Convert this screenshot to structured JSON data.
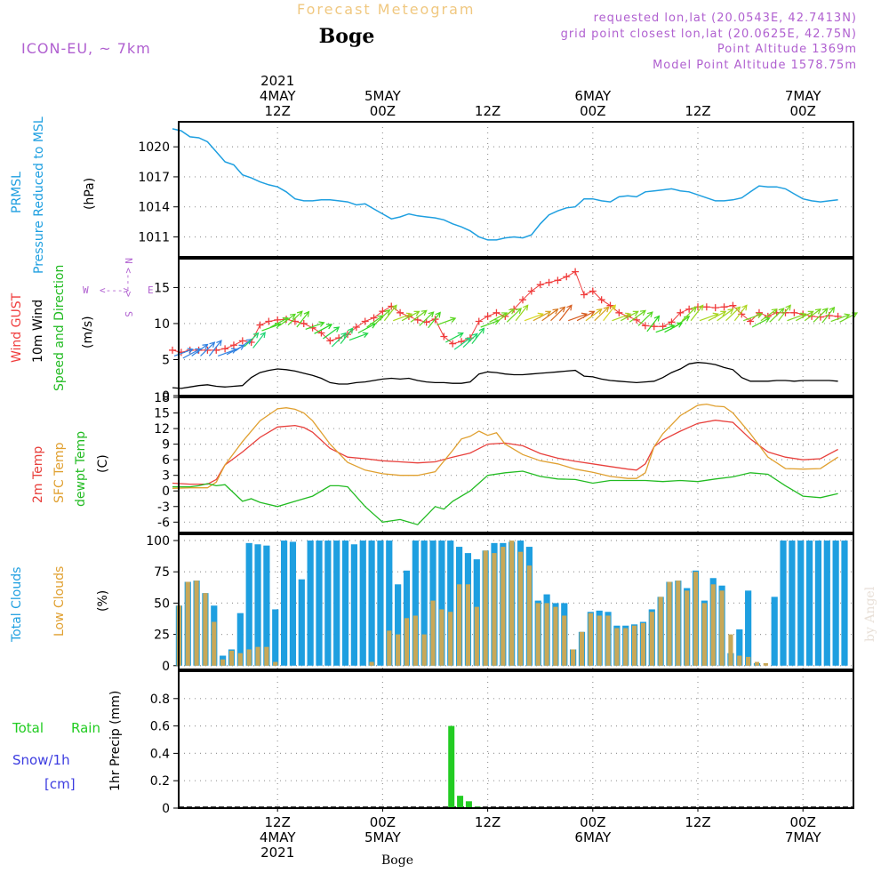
{
  "header": {
    "app_title": "Forecast Meteogram",
    "location": "Boge",
    "model": "ICON-EU, ~ 7km",
    "requested": "requested lon,lat (20.0543E, 42.7413N)",
    "grid_point": "grid point closest lon,lat (20.0625E, 42.75N)",
    "point_altitude": "Point Altitude 1369m",
    "model_altitude": "Model Point Altitude 1578.75m"
  },
  "footer": {
    "location": "Boge",
    "credit": "by Angel"
  },
  "colors": {
    "pressure": "#1e9fe0",
    "gust": "#f03c3c",
    "wind": "#000000",
    "direction": "#22bb22",
    "temp2m": "#e8403c",
    "sfc": "#e0a030",
    "dewpt": "#22bb22",
    "total_clouds": "#1e9fe0",
    "low_clouds": "#c8a858",
    "rain": "#22cc22",
    "snow": "#3c3ce0",
    "compass": "#b060d0",
    "header_info": "#b060d0",
    "title_orange": "#f0c880"
  },
  "time_axis": {
    "top_labels": [
      {
        "hours": 12,
        "lines": [
          "2021",
          "4MAY",
          "12Z"
        ]
      },
      {
        "hours": 24,
        "lines": [
          "5MAY",
          "00Z"
        ]
      },
      {
        "hours": 36,
        "lines": [
          "12Z"
        ]
      },
      {
        "hours": 48,
        "lines": [
          "6MAY",
          "00Z"
        ]
      },
      {
        "hours": 60,
        "lines": [
          "12Z"
        ]
      },
      {
        "hours": 72,
        "lines": [
          "7MAY",
          "00Z"
        ]
      }
    ],
    "bottom_labels": [
      {
        "hours": 12,
        "lines": [
          "12Z",
          "4MAY",
          "2021"
        ]
      },
      {
        "hours": 24,
        "lines": [
          "00Z",
          "5MAY"
        ]
      },
      {
        "hours": 36,
        "lines": [
          "12Z"
        ]
      },
      {
        "hours": 48,
        "lines": [
          "00Z",
          "6MAY"
        ]
      },
      {
        "hours": 60,
        "lines": [
          "12Z"
        ]
      },
      {
        "hours": 72,
        "lines": [
          "00Z",
          "7MAY"
        ]
      }
    ]
  },
  "compass": {
    "north": "N",
    "south": "S",
    "west": "W",
    "east": "E",
    "arrow": "<--->"
  },
  "chart_data": [
    {
      "id": "pressure",
      "type": "line",
      "title": "PRMSL Pressure Reduced to MSL",
      "ylabel_lines": [
        "PRMSL",
        "Pressure Reduced to MSL"
      ],
      "unit": "(hPa)",
      "ylim": [
        1009,
        1022.5
      ],
      "yticks": [
        1011,
        1014,
        1017,
        1020
      ],
      "x_range_hours": [
        0,
        77
      ],
      "x_hours": [
        0,
        1,
        2,
        3,
        4,
        5,
        6,
        7,
        8,
        9,
        10,
        11,
        12,
        13,
        14,
        15,
        16,
        17,
        18,
        19,
        20,
        21,
        22,
        23,
        24,
        25,
        26,
        27,
        28,
        29,
        30,
        31,
        32,
        33,
        34,
        35,
        36,
        37,
        38,
        39,
        40,
        41,
        42,
        43,
        44,
        45,
        46,
        47,
        48,
        49,
        50,
        51,
        52,
        53,
        54,
        55,
        56,
        57,
        58,
        59,
        60,
        61,
        62,
        63,
        64,
        65,
        66,
        67,
        68,
        69,
        70,
        71,
        72,
        73,
        74,
        75,
        76
      ],
      "values": [
        1021.8,
        1021.6,
        1021.0,
        1020.9,
        1020.5,
        1019.5,
        1018.5,
        1018.2,
        1017.2,
        1016.9,
        1016.5,
        1016.2,
        1016.0,
        1015.5,
        1014.8,
        1014.6,
        1014.6,
        1014.7,
        1014.7,
        1014.6,
        1014.5,
        1014.2,
        1014.3,
        1013.8,
        1013.3,
        1012.8,
        1013.0,
        1013.3,
        1013.1,
        1013.0,
        1012.9,
        1012.7,
        1012.3,
        1012.0,
        1011.6,
        1011.0,
        1010.7,
        1010.7,
        1010.9,
        1011.0,
        1010.9,
        1011.2,
        1012.3,
        1013.2,
        1013.6,
        1013.9,
        1014.0,
        1014.8,
        1014.8,
        1014.6,
        1014.5,
        1015.0,
        1015.1,
        1015.0,
        1015.5,
        1015.6,
        1015.7,
        1015.8,
        1015.6,
        1015.5,
        1015.2,
        1014.9,
        1014.6,
        1014.6,
        1014.7,
        1014.9,
        1015.5,
        1016.1,
        1016.0,
        1016.0,
        1015.8,
        1015.3,
        1014.8,
        1014.6,
        1014.5,
        1014.6,
        1014.7
      ]
    },
    {
      "id": "wind",
      "type": "line",
      "title": "Wind GUST / 10m Wind Speed and Direction",
      "ylabel_gust": "Wind GUST",
      "ylabel_wind": "10m Wind",
      "ylabel_dir": "Speed and Direction",
      "unit": "(m/s)",
      "ylim": [
        0,
        19
      ],
      "yticks": [
        0,
        5,
        10,
        15
      ],
      "x_range_hours": [
        0,
        77
      ],
      "series": [
        {
          "name": "Wind GUST",
          "marker": "+",
          "x_hours": [
            0,
            1,
            2,
            3,
            4,
            5,
            6,
            7,
            8,
            9,
            10,
            11,
            12,
            13,
            14,
            15,
            16,
            17,
            18,
            19,
            20,
            21,
            22,
            23,
            24,
            25,
            26,
            27,
            28,
            29,
            30,
            31,
            32,
            33,
            34,
            35,
            36,
            37,
            38,
            39,
            40,
            41,
            42,
            43,
            44,
            45,
            46,
            47,
            48,
            49,
            50,
            51,
            52,
            53,
            54,
            55,
            56,
            57,
            58,
            59,
            60,
            61,
            62,
            63,
            64,
            65,
            66,
            67,
            68,
            69,
            70,
            71,
            72,
            73,
            74,
            75,
            76
          ],
          "values": [
            6.3,
            6.0,
            6.3,
            6.3,
            6.3,
            6.3,
            6.5,
            7.0,
            7.6,
            7.4,
            9.8,
            10.3,
            10.5,
            10.6,
            10.3,
            10.0,
            9.4,
            8.7,
            7.6,
            8.0,
            8.5,
            9.5,
            10.3,
            10.8,
            11.7,
            12.4,
            11.5,
            11.0,
            10.5,
            10.2,
            10.6,
            8.2,
            7.2,
            7.5,
            8.0,
            10.3,
            11.0,
            11.5,
            11.0,
            12.0,
            13.3,
            14.5,
            15.4,
            15.7,
            16.0,
            16.5,
            17.2,
            14.0,
            14.5,
            13.3,
            12.5,
            11.5,
            11.0,
            10.5,
            9.7,
            9.6,
            9.6,
            10.2,
            11.5,
            12.0,
            12.3,
            12.3,
            12.2,
            12.3,
            12.5,
            11.3,
            10.3,
            11.5,
            11.0,
            11.5,
            11.5,
            11.5,
            11.3,
            11.0,
            10.9,
            11.1,
            11.0
          ]
        },
        {
          "name": "10m Wind",
          "x_hours": [
            0,
            1,
            2,
            3,
            4,
            5,
            6,
            7,
            8,
            9,
            10,
            11,
            12,
            13,
            14,
            15,
            16,
            17,
            18,
            19,
            20,
            21,
            22,
            23,
            24,
            25,
            26,
            27,
            28,
            29,
            30,
            31,
            32,
            33,
            34,
            35,
            36,
            37,
            38,
            39,
            40,
            41,
            42,
            43,
            44,
            45,
            46,
            47,
            48,
            49,
            50,
            51,
            52,
            53,
            54,
            55,
            56,
            57,
            58,
            59,
            60,
            61,
            62,
            63,
            64,
            65,
            66,
            67,
            68,
            69,
            70,
            71,
            72,
            73,
            74,
            75,
            76
          ],
          "values": [
            1.1,
            1.0,
            1.2,
            1.4,
            1.5,
            1.3,
            1.2,
            1.3,
            1.4,
            2.5,
            3.2,
            3.5,
            3.7,
            3.6,
            3.4,
            3.1,
            2.8,
            2.4,
            1.8,
            1.6,
            1.6,
            1.8,
            1.9,
            2.1,
            2.3,
            2.4,
            2.3,
            2.4,
            2.1,
            1.9,
            1.8,
            1.8,
            1.7,
            1.7,
            1.9,
            3.0,
            3.3,
            3.2,
            3.0,
            2.9,
            2.9,
            3.0,
            3.1,
            3.2,
            3.3,
            3.4,
            3.5,
            2.7,
            2.6,
            2.3,
            2.1,
            2.0,
            1.9,
            1.8,
            1.9,
            2.0,
            2.5,
            3.2,
            3.7,
            4.4,
            4.6,
            4.5,
            4.3,
            3.9,
            3.6,
            2.5,
            2.0,
            2.0,
            2.0,
            2.1,
            2.1,
            2.0,
            2.1,
            2.1,
            2.1,
            2.1,
            2.0
          ]
        }
      ],
      "direction_arrows_count": 77
    },
    {
      "id": "temperature",
      "type": "line",
      "ylabel_2m": "2m Temp",
      "ylabel_sfc": "SFC Temp",
      "ylabel_dew": "dewpt Temp",
      "unit": "(C)",
      "ylim": [
        -8,
        18
      ],
      "yticks": [
        -6,
        -3,
        0,
        3,
        6,
        9,
        12,
        15,
        18
      ],
      "x_range_hours": [
        0,
        77
      ],
      "series": [
        {
          "name": "2m Temp",
          "x_hours": [
            0,
            2,
            4,
            5,
            6,
            8,
            10,
            12,
            14,
            15,
            16,
            18,
            20,
            22,
            24,
            26,
            28,
            30,
            32,
            34,
            36,
            38,
            40,
            42,
            44,
            46,
            48,
            50,
            52,
            53,
            54,
            55,
            56,
            58,
            60,
            62,
            64,
            66,
            68,
            70,
            72,
            74,
            76
          ],
          "values": [
            1.5,
            1.3,
            1.3,
            2.2,
            5.0,
            7.5,
            10.3,
            12.3,
            12.6,
            12.2,
            11.3,
            8.2,
            6.5,
            6.2,
            5.8,
            5.6,
            5.4,
            5.6,
            6.5,
            7.3,
            9.0,
            9.2,
            8.7,
            7.2,
            6.3,
            5.7,
            5.2,
            4.7,
            4.2,
            4.0,
            5.2,
            8.5,
            9.8,
            11.5,
            13.0,
            13.6,
            13.2,
            10.0,
            7.5,
            6.5,
            6.0,
            6.2,
            8.0
          ]
        },
        {
          "name": "SFC Temp",
          "x_hours": [
            0,
            2,
            4,
            5,
            6,
            8,
            10,
            12,
            13,
            14,
            15,
            16,
            18,
            20,
            22,
            24,
            26,
            28,
            30,
            32,
            33,
            34,
            35,
            36,
            37,
            38,
            40,
            42,
            44,
            46,
            48,
            50,
            52,
            53,
            54,
            55,
            56,
            58,
            60,
            61,
            62,
            63,
            64,
            66,
            68,
            70,
            72,
            74,
            76
          ],
          "values": [
            0.5,
            0.6,
            0.6,
            1.7,
            5.0,
            9.5,
            13.5,
            15.8,
            16.0,
            15.7,
            15.0,
            13.5,
            9.0,
            5.5,
            4.0,
            3.3,
            3.0,
            3.0,
            3.7,
            7.8,
            10.0,
            10.5,
            11.5,
            10.7,
            11.2,
            9.0,
            7.0,
            5.8,
            5.2,
            4.2,
            3.6,
            2.8,
            2.4,
            2.4,
            3.5,
            8.5,
            11.0,
            14.5,
            16.5,
            16.7,
            16.3,
            16.2,
            15.0,
            11.0,
            6.5,
            4.3,
            4.2,
            4.3,
            6.5
          ]
        },
        {
          "name": "dewpt Temp",
          "x_hours": [
            0,
            2,
            3,
            4,
            5,
            6,
            8,
            9,
            10,
            12,
            14,
            16,
            18,
            19,
            20,
            22,
            24,
            26,
            27,
            28,
            30,
            31,
            32,
            34,
            35,
            36,
            38,
            40,
            42,
            44,
            46,
            48,
            50,
            52,
            54,
            56,
            58,
            60,
            62,
            64,
            66,
            68,
            70,
            72,
            74,
            76
          ],
          "values": [
            0.8,
            0.8,
            1.0,
            1.4,
            1.0,
            1.2,
            -2.0,
            -1.5,
            -2.2,
            -3.0,
            -2.0,
            -1.0,
            1.0,
            1.0,
            0.8,
            -3.0,
            -6.0,
            -5.5,
            -6.0,
            -6.5,
            -3.0,
            -3.5,
            -2.0,
            0.0,
            1.5,
            3.0,
            3.5,
            3.8,
            2.8,
            2.3,
            2.2,
            1.5,
            2.0,
            2.0,
            2.0,
            1.8,
            2.0,
            1.8,
            2.3,
            2.7,
            3.5,
            3.2,
            1.0,
            -1.0,
            -1.3,
            -0.5
          ]
        }
      ]
    },
    {
      "id": "clouds",
      "type": "bar",
      "ylabel_total": "Total Clouds",
      "ylabel_low": "Low Clouds",
      "unit": "(%)",
      "ylim": [
        -3,
        105
      ],
      "yticks": [
        0,
        25,
        50,
        75,
        100
      ],
      "x_range_hours": [
        0,
        77
      ],
      "series": [
        {
          "name": "Total Clouds",
          "values": [
            48,
            67,
            68,
            58,
            48,
            8,
            13,
            42,
            98,
            97,
            96,
            45,
            100,
            99,
            69,
            100,
            100,
            100,
            100,
            100,
            97,
            100,
            100,
            100,
            100,
            65,
            76,
            100,
            100,
            100,
            100,
            100,
            95,
            90,
            85,
            92,
            98,
            98,
            99,
            100,
            95,
            52,
            57,
            50,
            50,
            13,
            27,
            43,
            44,
            43,
            32,
            32,
            33,
            35,
            45,
            55,
            67,
            68,
            62,
            76,
            52,
            70,
            64,
            10,
            29,
            60,
            2,
            0,
            55,
            100,
            100,
            100,
            100,
            100,
            100,
            100,
            100
          ]
        },
        {
          "name": "Low Clouds",
          "values": [
            48,
            67,
            68,
            58,
            35,
            5,
            12,
            10,
            13,
            15,
            15,
            3,
            0,
            0,
            0,
            0,
            0,
            0,
            0,
            0,
            0,
            0,
            3,
            0,
            28,
            25,
            38,
            40,
            25,
            52,
            45,
            43,
            65,
            65,
            47,
            92,
            90,
            95,
            100,
            91,
            80,
            50,
            50,
            47,
            40,
            13,
            27,
            42,
            40,
            40,
            30,
            30,
            32,
            34,
            43,
            55,
            67,
            68,
            60,
            75,
            50,
            65,
            60,
            25,
            8,
            7,
            3,
            2,
            0,
            0,
            0,
            0,
            0,
            0,
            0,
            0,
            0
          ]
        }
      ]
    },
    {
      "id": "precip",
      "type": "bar",
      "ylabel_total": "Total",
      "ylabel_rain": "Rain",
      "ylabel_snow": "Snow/1h",
      "ylabel_cm": "[cm]",
      "unit": "1hr Precip (mm)",
      "ylim": [
        0,
        1.0
      ],
      "yticks": [
        0,
        0.2,
        0.4,
        0.6,
        0.8
      ],
      "x_range_hours": [
        0,
        77
      ],
      "x_hours": [
        31,
        32,
        33,
        34
      ],
      "values": [
        0.6,
        0.09,
        0.05,
        0.01
      ]
    }
  ]
}
